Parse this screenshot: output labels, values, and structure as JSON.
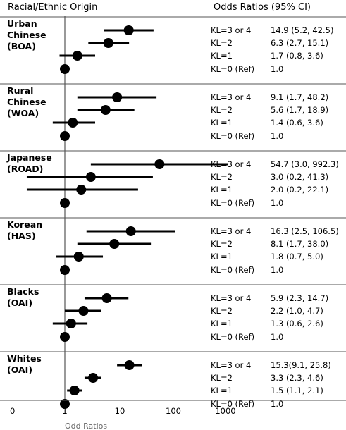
{
  "headers": {
    "left": "Racial/Ethnic Origin",
    "right": "Odds Ratios (95% CI)"
  },
  "chart_data": {
    "type": "forest",
    "xlabel": "Odd Ratios",
    "x_scale": "log10",
    "x_ticks": [
      "0",
      "1",
      "10",
      "100",
      "1000"
    ],
    "reference_line": 1,
    "groups": [
      {
        "name_lines": [
          "Urban",
          "Chinese",
          "(BOA)"
        ],
        "rows": [
          {
            "label": "KL=3 or 4",
            "or": 14.9,
            "low": 5.2,
            "high": 42.5,
            "text": "14.9 (5.2, 42.5)"
          },
          {
            "label": "KL=2",
            "or": 6.3,
            "low": 2.7,
            "high": 15.1,
            "text": "6.3 (2.7, 15.1)"
          },
          {
            "label": "KL=1",
            "or": 1.7,
            "low": 0.8,
            "high": 3.6,
            "text": "1.7 (0.8, 3.6)"
          },
          {
            "label": "KL=0 (Ref)",
            "or": 1.0,
            "low": 1.0,
            "high": 1.0,
            "text": "1.0"
          }
        ]
      },
      {
        "name_lines": [
          "Rural",
          "Chinese",
          "(WOA)"
        ],
        "rows": [
          {
            "label": "KL=3 or 4",
            "or": 9.1,
            "low": 1.7,
            "high": 48.2,
            "text": "9.1 (1.7, 48.2)"
          },
          {
            "label": "KL=2",
            "or": 5.6,
            "low": 1.7,
            "high": 18.9,
            "text": "5.6 (1.7, 18.9)"
          },
          {
            "label": "KL=1",
            "or": 1.4,
            "low": 0.6,
            "high": 3.6,
            "text": "1.4 (0.6, 3.6)"
          },
          {
            "label": "KL=0 (Ref)",
            "or": 1.0,
            "low": 1.0,
            "high": 1.0,
            "text": "1.0"
          }
        ]
      },
      {
        "name_lines": [
          "Japanese",
          "(ROAD)"
        ],
        "rows": [
          {
            "label": "KL=3 or 4",
            "or": 54.7,
            "low": 3.0,
            "high": 992.3,
            "text": "54.7 (3.0, 992.3)"
          },
          {
            "label": "KL=2",
            "or": 3.0,
            "low": 0.2,
            "high": 41.3,
            "text": "3.0 (0.2, 41.3)"
          },
          {
            "label": "KL=1",
            "or": 2.0,
            "low": 0.2,
            "high": 22.1,
            "text": "2.0 (0.2, 22.1)"
          },
          {
            "label": "KL=0 (Ref)",
            "or": 1.0,
            "low": 1.0,
            "high": 1.0,
            "text": "1.0"
          }
        ]
      },
      {
        "name_lines": [
          "Korean",
          "(HAS)"
        ],
        "rows": [
          {
            "label": "KL=3 or 4",
            "or": 16.3,
            "low": 2.5,
            "high": 106.5,
            "text": "16.3 (2.5, 106.5)"
          },
          {
            "label": "KL=2",
            "or": 8.1,
            "low": 1.7,
            "high": 38.0,
            "text": "8.1 (1.7, 38.0)"
          },
          {
            "label": "KL=1",
            "or": 1.8,
            "low": 0.7,
            "high": 5.0,
            "text": "1.8 (0.7, 5.0)"
          },
          {
            "label": "KL=0 (Ref)",
            "or": 1.0,
            "low": 1.0,
            "high": 1.0,
            "text": "1.0"
          }
        ]
      },
      {
        "name_lines": [
          "Blacks",
          "(OAI)"
        ],
        "rows": [
          {
            "label": "KL=3 or 4",
            "or": 5.9,
            "low": 2.3,
            "high": 14.7,
            "text": "5.9 (2.3, 14.7)"
          },
          {
            "label": "KL=2",
            "or": 2.2,
            "low": 1.0,
            "high": 4.7,
            "text": "2.2 (1.0, 4.7)"
          },
          {
            "label": "KL=1",
            "or": 1.3,
            "low": 0.6,
            "high": 2.6,
            "text": "1.3 (0.6, 2.6)"
          },
          {
            "label": "KL=0 (Ref)",
            "or": 1.0,
            "low": 1.0,
            "high": 1.0,
            "text": "1.0"
          }
        ]
      },
      {
        "name_lines": [
          "Whites",
          "(OAI)"
        ],
        "rows": [
          {
            "label": "KL=3 or 4",
            "or": 15.3,
            "low": 9.1,
            "high": 25.8,
            "text": "15.3(9.1, 25.8)"
          },
          {
            "label": "KL=2",
            "or": 3.3,
            "low": 2.3,
            "high": 4.6,
            "text": "3.3 (2.3, 4.6)"
          },
          {
            "label": "KL=1",
            "or": 1.5,
            "low": 1.1,
            "high": 2.1,
            "text": "1.5 (1.1, 2.1)"
          },
          {
            "label": "KL=0 (Ref)",
            "or": 1.0,
            "low": 1.0,
            "high": 1.0,
            "text": "1.0"
          }
        ]
      }
    ]
  }
}
